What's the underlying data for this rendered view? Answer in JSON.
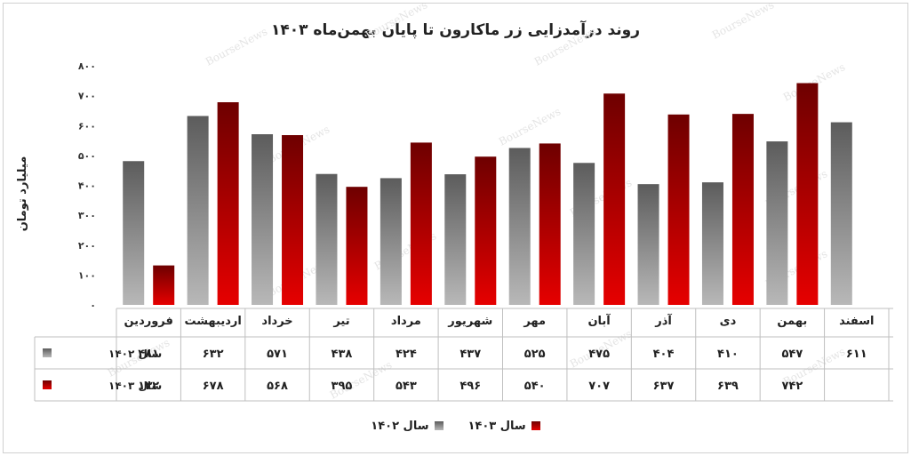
{
  "chart_data": {
    "type": "bar",
    "title": "روند درآمدزایی زر ماکارون تا پایان بهمن‌ماه ۱۴۰۳",
    "ylabel": "میلیارد تومان",
    "ylim": [
      0,
      800
    ],
    "yticks": [
      0,
      100,
      200,
      300,
      400,
      500,
      600,
      700,
      800
    ],
    "ytick_labels": [
      "۰",
      "۱۰۰",
      "۲۰۰",
      "۳۰۰",
      "۴۰۰",
      "۵۰۰",
      "۶۰۰",
      "۷۰۰",
      "۸۰۰"
    ],
    "categories": [
      "فروردین",
      "اردیبهشت",
      "خرداد",
      "تیر",
      "مرداد",
      "شهریور",
      "مهر",
      "آبان",
      "آذر",
      "دی",
      "بهمن",
      "اسفند"
    ],
    "series": [
      {
        "name": "سال ۱۴۰۲",
        "color": "#666666",
        "values": [
          481,
          632,
          571,
          438,
          424,
          437,
          525,
          475,
          404,
          410,
          547,
          611
        ],
        "labels": [
          "۴۸۱",
          "۶۳۲",
          "۵۷۱",
          "۴۳۸",
          "۴۲۴",
          "۴۳۷",
          "۵۲۵",
          "۴۷۵",
          "۴۰۴",
          "۴۱۰",
          "۵۴۷",
          "۶۱۱"
        ]
      },
      {
        "name": "سال ۱۴۰۳",
        "color": "#c00000",
        "values": [
          132,
          678,
          568,
          395,
          543,
          496,
          540,
          707,
          637,
          639,
          742,
          null
        ],
        "labels": [
          "۱۳۲",
          "۶۷۸",
          "۵۶۸",
          "۳۹۵",
          "۵۴۳",
          "۴۹۶",
          "۵۴۰",
          "۷۰۷",
          "۶۳۷",
          "۶۳۹",
          "۷۴۲",
          ""
        ]
      }
    ],
    "legend": "bottom",
    "grid": false,
    "data_table": true
  },
  "watermark": "BourseNews"
}
